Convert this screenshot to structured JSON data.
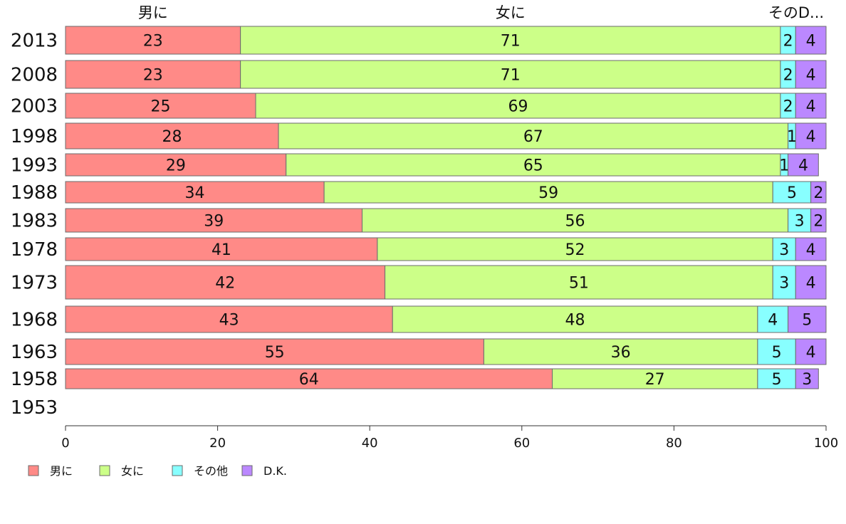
{
  "chart_data": {
    "type": "bar",
    "orientation": "horizontal",
    "stacked": true,
    "categories": [
      "2013",
      "2008",
      "2003",
      "1998",
      "1993",
      "1988",
      "1983",
      "1978",
      "1973",
      "1968",
      "1963",
      "1958",
      "1953"
    ],
    "series": [
      {
        "name": "男に",
        "color": "#ff8a87",
        "values": [
          23,
          23,
          25,
          28,
          29,
          34,
          39,
          41,
          42,
          43,
          55,
          64,
          null
        ]
      },
      {
        "name": "女に",
        "color": "#ccff88",
        "values": [
          71,
          71,
          69,
          67,
          65,
          59,
          56,
          52,
          51,
          48,
          36,
          27,
          null
        ]
      },
      {
        "name": "その他",
        "color": "#88ffff",
        "values": [
          2,
          2,
          2,
          1,
          1,
          5,
          3,
          3,
          3,
          4,
          5,
          5,
          null
        ]
      },
      {
        "name": "D.K.",
        "color": "#bb88ff",
        "values": [
          4,
          4,
          4,
          4,
          4,
          2,
          2,
          4,
          4,
          5,
          4,
          3,
          null
        ]
      }
    ],
    "top_labels": [
      "男に",
      "女に",
      "そのD..."
    ],
    "xlim": [
      0,
      100
    ],
    "xticks": [
      "0",
      "20",
      "40",
      "60",
      "80",
      "100"
    ],
    "legend": [
      "男に",
      "女に",
      "その他",
      "D.K."
    ],
    "legend_position": "bottom-left",
    "grid": false
  }
}
